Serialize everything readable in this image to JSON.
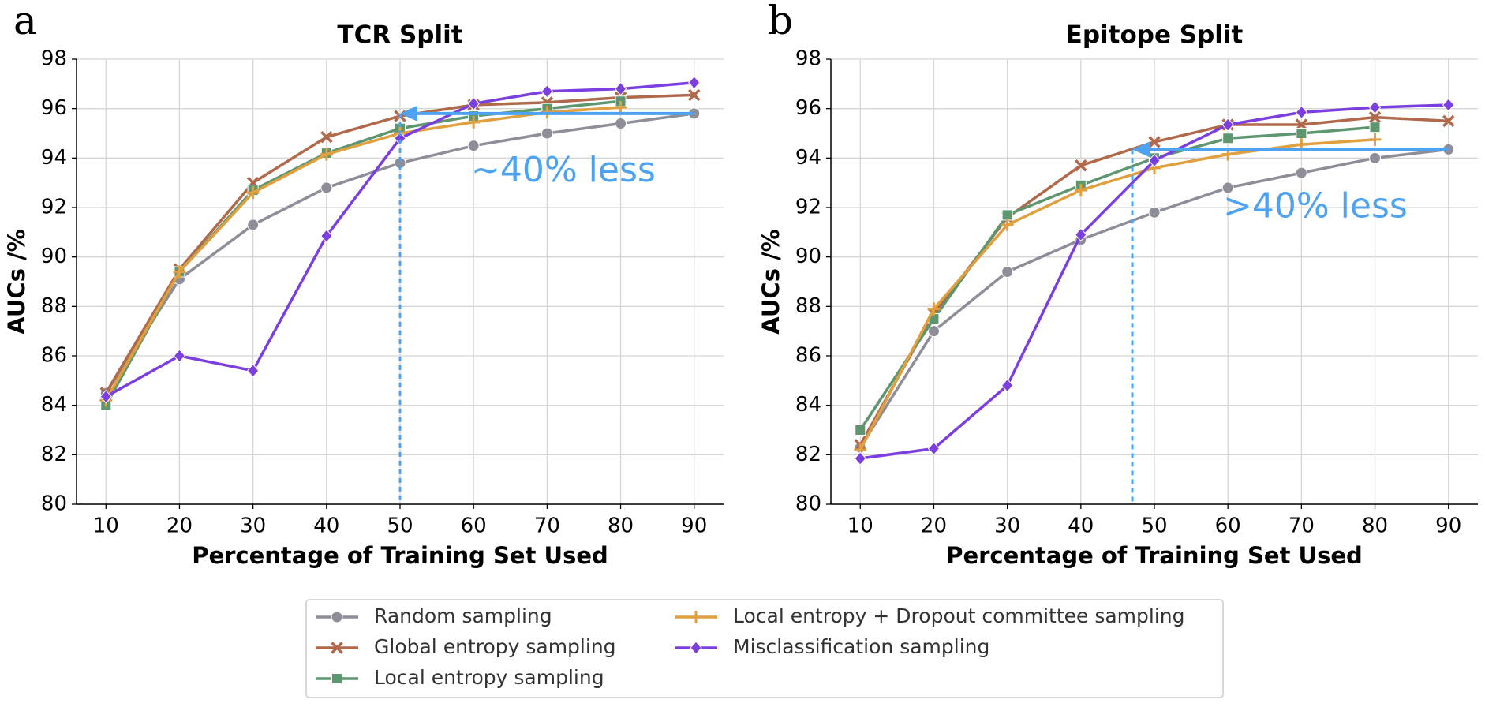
{
  "chart_data": [
    {
      "type": "line",
      "panel_label": "a",
      "title": "TCR Split",
      "xlabel": "Percentage of Training Set Used",
      "ylabel": "AUCs /%",
      "x": [
        10,
        20,
        30,
        40,
        50,
        60,
        70,
        80,
        90
      ],
      "xlim": [
        6,
        94
      ],
      "xticks": [
        10,
        20,
        30,
        40,
        50,
        60,
        70,
        80,
        90
      ],
      "ylim": [
        80,
        98
      ],
      "yticks": [
        80,
        82,
        84,
        86,
        88,
        90,
        92,
        94,
        96,
        98
      ],
      "grid": true,
      "series": [
        {
          "name": "Random sampling",
          "color": "#8e8e98",
          "marker": "circle",
          "values": [
            84.5,
            89.1,
            91.3,
            92.8,
            93.8,
            94.5,
            95.0,
            95.4,
            95.8
          ]
        },
        {
          "name": "Global entropy sampling",
          "color": "#b0694a",
          "marker": "x",
          "values": [
            84.5,
            89.5,
            93.0,
            94.85,
            95.7,
            96.15,
            96.25,
            96.45,
            96.55
          ]
        },
        {
          "name": "Local entropy sampling",
          "color": "#5e9670",
          "marker": "square",
          "values": [
            84.0,
            89.4,
            92.7,
            94.2,
            95.2,
            95.7,
            96.0,
            96.3,
            null
          ]
        },
        {
          "name": "Local entropy + Dropout committee sampling",
          "color": "#e0a040",
          "marker": "plus",
          "values": [
            84.2,
            89.4,
            92.6,
            94.15,
            95.0,
            95.45,
            95.85,
            96.05,
            null
          ]
        },
        {
          "name": "Misclassification sampling",
          "color": "#7b3fe0",
          "marker": "diamond",
          "values": [
            84.35,
            86.0,
            85.4,
            90.85,
            94.8,
            96.2,
            96.7,
            96.8,
            97.05
          ]
        }
      ],
      "annotation": {
        "text": "~40% less",
        "x_from": 90,
        "x_to": 50,
        "y": 95.8,
        "color": "#4da3f0"
      }
    },
    {
      "type": "line",
      "panel_label": "b",
      "title": "Epitope Split",
      "xlabel": "Percentage of Training Set Used",
      "ylabel": "AUCs /%",
      "x": [
        10,
        20,
        30,
        40,
        50,
        60,
        70,
        80,
        90
      ],
      "xlim": [
        6,
        94
      ],
      "xticks": [
        10,
        20,
        30,
        40,
        50,
        60,
        70,
        80,
        90
      ],
      "ylim": [
        80,
        98
      ],
      "yticks": [
        80,
        82,
        84,
        86,
        88,
        90,
        92,
        94,
        96,
        98
      ],
      "grid": true,
      "series": [
        {
          "name": "Random sampling",
          "color": "#8e8e98",
          "marker": "circle",
          "values": [
            82.3,
            87.0,
            89.4,
            90.7,
            91.8,
            92.8,
            93.4,
            94.0,
            94.35
          ]
        },
        {
          "name": "Global entropy sampling",
          "color": "#b0694a",
          "marker": "x",
          "values": [
            82.4,
            87.7,
            91.6,
            93.7,
            94.65,
            95.35,
            95.35,
            95.65,
            95.5
          ]
        },
        {
          "name": "Local entropy sampling",
          "color": "#5e9670",
          "marker": "square",
          "values": [
            83.0,
            87.5,
            91.7,
            92.9,
            94.0,
            94.8,
            95.0,
            95.25,
            null
          ]
        },
        {
          "name": "Local entropy + Dropout committee sampling",
          "color": "#e0a040",
          "marker": "plus",
          "values": [
            82.2,
            87.9,
            91.3,
            92.7,
            93.6,
            94.15,
            94.55,
            94.75,
            null
          ]
        },
        {
          "name": "Misclassification sampling",
          "color": "#7b3fe0",
          "marker": "diamond",
          "values": [
            81.85,
            82.25,
            84.8,
            90.9,
            93.9,
            95.35,
            95.85,
            96.05,
            96.15
          ]
        }
      ],
      "annotation": {
        "text": ">40% less",
        "x_from": 90,
        "x_to": 47,
        "y": 94.35,
        "color": "#4da3f0"
      }
    }
  ]
}
